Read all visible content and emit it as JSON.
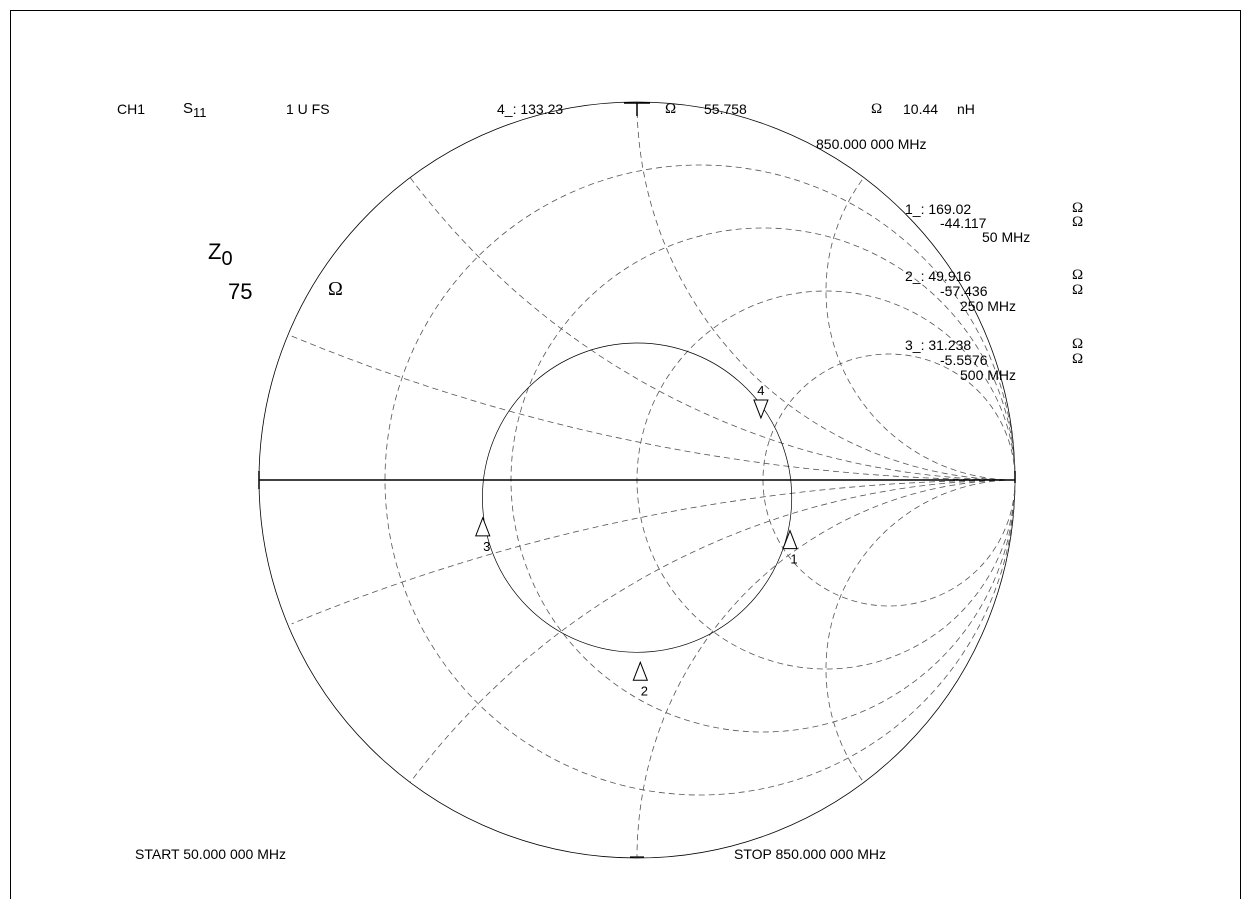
{
  "header": {
    "channel": "CH1",
    "param_main": "S",
    "param_sub": "11",
    "scale": "1 U FS",
    "active_marker": "4_: 133.23",
    "active_r_unit": "Ω",
    "active_x": "55.758",
    "active_x_unit": "Ω",
    "active_l": "10.44",
    "active_l_unit": "nH",
    "active_freq": "850.000 000 MHz"
  },
  "z0": {
    "label_main": "Z",
    "label_sub": "0",
    "value": "75",
    "unit": "Ω"
  },
  "marker_readouts": [
    {
      "label": "1_: 169.02",
      "r_unit": "Ω",
      "x": "-44.117",
      "x_unit": "Ω",
      "freq": "50 MHz"
    },
    {
      "label": "2_: 49.916",
      "r_unit": "Ω",
      "x": "-57.436",
      "x_unit": "Ω",
      "freq": "250 MHz"
    },
    {
      "label": "3_: 31.238",
      "r_unit": "Ω",
      "x": "-5.5576",
      "x_unit": "Ω",
      "freq": "500 MHz"
    }
  ],
  "footer": {
    "start": "START  50.000 000 MHz",
    "stop": "STOP  850.000 000 MHz"
  },
  "chart_data": {
    "type": "scatter",
    "subtype": "smith-chart",
    "grid": true,
    "reference_impedance": 75,
    "x_unit": "MHz",
    "markers": [
      {
        "id": "1",
        "freq": 50,
        "r": 169.02,
        "x": -44.117
      },
      {
        "id": "2",
        "freq": 250,
        "r": 49.916,
        "x": -57.436
      },
      {
        "id": "3",
        "freq": 500,
        "r": 31.238,
        "x": -5.5576
      },
      {
        "id": "4",
        "freq": 850,
        "r": 133.23,
        "x": 55.758
      }
    ],
    "start_freq": 50,
    "stop_freq": 850
  }
}
